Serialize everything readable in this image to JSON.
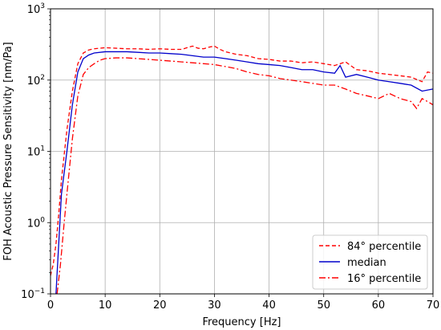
{
  "chart_data": {
    "type": "line",
    "xlabel": "Frequency [Hz]",
    "ylabel": "FOH Acoustic Pressure Sensitivity [nm/Pa]",
    "xlim": [
      0,
      70
    ],
    "ylim": [
      0.1,
      1000
    ],
    "yscale": "log",
    "grid": true,
    "legend_position": "bottom-right",
    "x_ticks": [
      0,
      10,
      20,
      30,
      40,
      50,
      60,
      70
    ],
    "x_tick_labels": [
      "0",
      "10",
      "20",
      "30",
      "40",
      "50",
      "60",
      "70"
    ],
    "y_ticks": [
      0.1,
      1,
      10,
      100,
      1000
    ],
    "y_tick_labels": [
      {
        "base": "10",
        "exp": "−1"
      },
      {
        "base": "10",
        "exp": "0"
      },
      {
        "base": "10",
        "exp": "1"
      },
      {
        "base": "10",
        "exp": "2"
      },
      {
        "base": "10",
        "exp": "3"
      }
    ],
    "series": [
      {
        "name": "84° percentile",
        "color": "#ff0000",
        "style": "dashed",
        "x": [
          0,
          0.5,
          1,
          1.5,
          2,
          3,
          4,
          5,
          6,
          7,
          8,
          10,
          12,
          14,
          16,
          18,
          20,
          22,
          24,
          25,
          26,
          27,
          28,
          29,
          30,
          31,
          32,
          34,
          36,
          38,
          40,
          42,
          44,
          46,
          48,
          50,
          52,
          54,
          56,
          58,
          60,
          62,
          64,
          66,
          68,
          69,
          70
        ],
        "y": [
          0.18,
          0.26,
          0.5,
          1.3,
          4,
          20,
          70,
          170,
          240,
          265,
          275,
          285,
          280,
          275,
          275,
          270,
          275,
          270,
          270,
          285,
          300,
          280,
          275,
          290,
          300,
          270,
          250,
          230,
          220,
          200,
          195,
          185,
          185,
          175,
          180,
          170,
          160,
          180,
          140,
          135,
          125,
          120,
          115,
          110,
          95,
          130,
          125
        ]
      },
      {
        "name": "median",
        "color": "#0000cc",
        "style": "solid",
        "x": [
          1,
          1.5,
          2,
          3,
          4,
          5,
          6,
          7,
          8,
          10,
          12,
          14,
          16,
          18,
          20,
          22,
          24,
          26,
          28,
          30,
          32,
          34,
          36,
          38,
          40,
          42,
          44,
          46,
          48,
          50,
          52,
          53,
          54,
          56,
          58,
          60,
          62,
          64,
          66,
          68,
          70
        ],
        "y": [
          0.1,
          0.5,
          2.5,
          10,
          45,
          130,
          200,
          225,
          240,
          250,
          250,
          250,
          245,
          240,
          240,
          235,
          230,
          220,
          210,
          210,
          200,
          190,
          180,
          170,
          165,
          160,
          150,
          140,
          140,
          130,
          125,
          160,
          110,
          120,
          110,
          100,
          95,
          90,
          85,
          70,
          75
        ]
      },
      {
        "name": "16° percentile",
        "color": "#ff0000",
        "style": "dashdot",
        "x": [
          1.2,
          1.8,
          2.5,
          3,
          4,
          5,
          6,
          7,
          8,
          9,
          10,
          12,
          14,
          16,
          18,
          20,
          22,
          24,
          26,
          28,
          30,
          32,
          34,
          36,
          38,
          40,
          42,
          44,
          46,
          48,
          50,
          52,
          54,
          56,
          58,
          60,
          62,
          64,
          66,
          67,
          68,
          69,
          70
        ],
        "y": [
          0.1,
          0.25,
          1,
          2.5,
          15,
          60,
          120,
          150,
          170,
          190,
          200,
          205,
          205,
          200,
          195,
          190,
          185,
          180,
          175,
          170,
          165,
          155,
          145,
          130,
          120,
          115,
          105,
          100,
          95,
          90,
          85,
          85,
          75,
          65,
          60,
          55,
          65,
          55,
          50,
          40,
          55,
          50,
          45
        ]
      }
    ]
  }
}
